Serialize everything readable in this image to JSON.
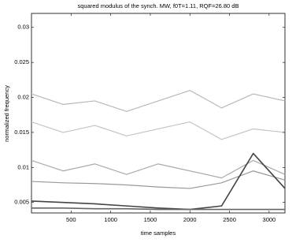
{
  "chart_data": {
    "type": "line",
    "title": "squared modulus of the synch. MW, f0T=1.11, RQF=26.80 dB",
    "x_label": "time samples",
    "y_label": "normalized frequency",
    "x": [
      0,
      400,
      800,
      1200,
      1600,
      2000,
      2400,
      2800,
      3200
    ],
    "series": [
      {
        "color": "#b8b8b8",
        "values": [
          0.0205,
          0.019,
          0.0195,
          0.018,
          0.0195,
          0.021,
          0.0185,
          0.0205,
          0.0195
        ]
      },
      {
        "color": "#c4c4c4",
        "values": [
          0.0165,
          0.015,
          0.016,
          0.0145,
          0.0155,
          0.0165,
          0.014,
          0.0155,
          0.015
        ]
      },
      {
        "color": "#aaaaaa",
        "values": [
          0.011,
          0.0095,
          0.0105,
          0.009,
          0.0105,
          0.0095,
          0.0085,
          0.011,
          0.009
        ]
      },
      {
        "color": "#999999",
        "values": [
          0.008,
          0.0078,
          0.0077,
          0.0075,
          0.0072,
          0.007,
          0.0078,
          0.0095,
          0.0082
        ]
      },
      {
        "color": "#444444",
        "values": [
          0.0052,
          0.005,
          0.0048,
          0.0045,
          0.0042,
          0.004,
          0.0045,
          0.012,
          0.007
        ]
      },
      {
        "color": "#666666",
        "values": [
          0.0042,
          0.0042,
          0.0041,
          0.0041,
          0.004,
          0.004,
          0.004,
          0.004,
          0.004
        ]
      }
    ],
    "xlim": [
      0,
      3200
    ],
    "ylim": [
      0.0035,
      0.032
    ],
    "xticks": [
      500,
      1000,
      1500,
      2000,
      2500,
      3000
    ],
    "yticks": [
      0.005,
      0.01,
      0.015,
      0.02,
      0.025,
      0.03
    ]
  }
}
